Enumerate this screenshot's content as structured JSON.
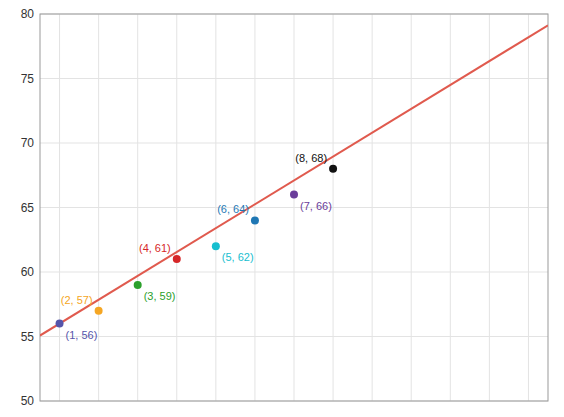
{
  "chart_data": {
    "type": "scatter",
    "xlim": [
      0.5,
      13.5
    ],
    "xticks": [
      1,
      2,
      3,
      4,
      5,
      6,
      7,
      8,
      9,
      10,
      11,
      12,
      13
    ],
    "ylim": [
      50,
      80
    ],
    "yticks": [
      50,
      55,
      60,
      65,
      70,
      75,
      80
    ],
    "grid": true,
    "tick_labels": "y",
    "series": [
      {
        "type": "scatter",
        "x": [
          1,
          2,
          3,
          4,
          5,
          6,
          7,
          8
        ],
        "values": [
          56,
          57,
          59,
          61,
          62,
          64,
          66,
          68
        ],
        "colors": [
          "#5555aa",
          "#f5a623",
          "#2ca02c",
          "#d62728",
          "#17becf",
          "#1f77b4",
          "#6a3d9a",
          "#111111"
        ],
        "data_labels": true,
        "value_labels": [
          "(1, 56)",
          "(2, 57)",
          "(3, 59)",
          "(4, 61)",
          "(5, 62)",
          "(6, 64)",
          "(7, 66)",
          "(8, 68)"
        ]
      },
      {
        "type": "line",
        "x": [
          0.5,
          13.5
        ],
        "values": [
          55.075,
          79.125
        ],
        "color": "#e05a4e"
      }
    ]
  }
}
